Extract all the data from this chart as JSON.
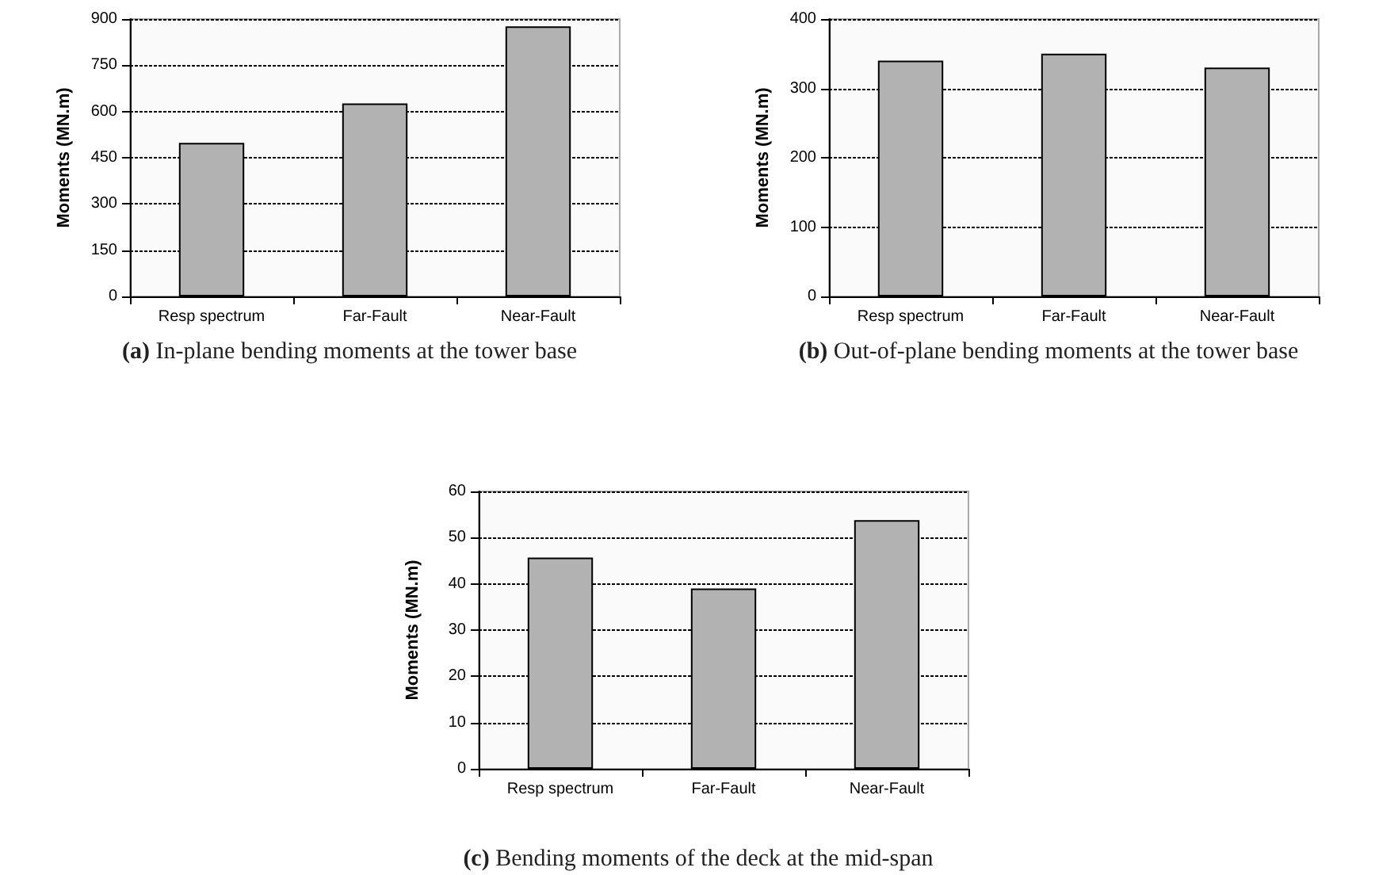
{
  "chart_data": [
    {
      "type": "bar",
      "ylabel": "Moments (MN.m)",
      "categories": [
        "Resp spectrum",
        "Far-Fault",
        "Near-Fault"
      ],
      "values": [
        498,
        626,
        876
      ],
      "color": "#b2b2b2",
      "ylim": [
        0,
        900
      ],
      "yticks": [
        0,
        150,
        300,
        450,
        600,
        750,
        900
      ],
      "grid": "y",
      "annotations": [
        "(a) In-plane bending moments at the tower base"
      ]
    },
    {
      "type": "bar",
      "ylabel": "Moments (MN.m)",
      "categories": [
        "Resp spectrum",
        "Far-Fault",
        "Near-Fault"
      ],
      "values": [
        340,
        350,
        330
      ],
      "color": "#b2b2b2",
      "ylim": [
        0,
        400
      ],
      "yticks": [
        0,
        100,
        200,
        300,
        400
      ],
      "grid": "y",
      "annotations": [
        "(b) Out-of-plane bending moments at the tower base"
      ]
    },
    {
      "type": "bar",
      "ylabel": "Moments (MN.m)",
      "categories": [
        "Resp spectrum",
        "Far-Fault",
        "Near-Fault"
      ],
      "values": [
        45.7,
        39,
        53.8
      ],
      "color": "#b2b2b2",
      "ylim": [
        0,
        60
      ],
      "yticks": [
        0,
        10,
        20,
        30,
        40,
        50,
        60
      ],
      "grid": "y",
      "annotations": [
        "(c) Bending moments of the deck at the mid-span"
      ]
    }
  ]
}
